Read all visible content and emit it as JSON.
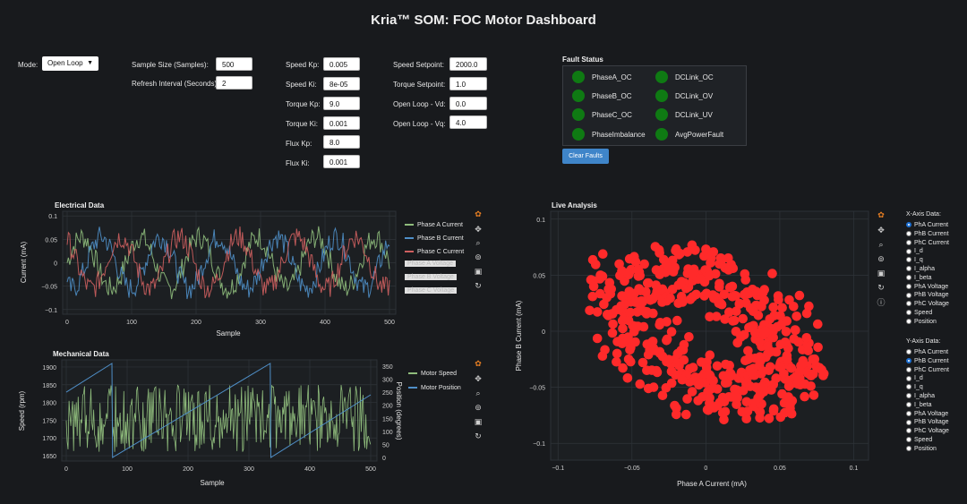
{
  "title": "Kria™ SOM: FOC Motor Dashboard",
  "controls": {
    "mode_label": "Mode:",
    "mode_value": "Open Loop",
    "sample_size_label": "Sample Size (Samples):",
    "sample_size_value": "500",
    "refresh_label": "Refresh Interval (Seconds):",
    "refresh_value": "2",
    "speed_kp_label": "Speed Kp:",
    "speed_kp_value": "0.005",
    "speed_ki_label": "Speed Ki:",
    "speed_ki_value": "8e-05",
    "torque_kp_label": "Torque Kp:",
    "torque_kp_value": "9.0",
    "torque_ki_label": "Torque Ki:",
    "torque_ki_value": "0.001",
    "flux_kp_label": "Flux Kp:",
    "flux_kp_value": "8.0",
    "flux_ki_label": "Flux Ki:",
    "flux_ki_value": "0.001",
    "speed_setpoint_label": "Speed Setpoint:",
    "speed_setpoint_value": "2000.0",
    "torque_setpoint_label": "Torque Setpoint:",
    "torque_setpoint_value": "1.0",
    "vd_label": "Open Loop - Vd:",
    "vd_value": "0.0",
    "vq_label": "Open Loop - Vq:",
    "vq_value": "4.0"
  },
  "fault_status": {
    "title": "Fault Status",
    "left": [
      "PhaseA_OC",
      "PhaseB_OC",
      "PhaseC_OC",
      "PhaseImbalance"
    ],
    "right": [
      "DCLink_OC",
      "DCLink_OV",
      "DCLink_UV",
      "AvgPowerFault"
    ],
    "led_color": "#0f7a13",
    "clear_button": "Clear Faults"
  },
  "colors": {
    "phase_a": "#8fbc7c",
    "phase_b": "#4f8fc8",
    "phase_c": "#cf5f5f",
    "scatter": "#ff2a2a",
    "motor_speed": "#8fbc7c",
    "motor_position": "#4f8fc8"
  },
  "chart_data": [
    {
      "type": "line",
      "title": "Electrical Data",
      "xlabel": "Sample",
      "ylabel": "Current (mA)",
      "xlim": [
        0,
        500
      ],
      "ylim": [
        -0.11,
        0.11
      ],
      "xticks": [
        "0",
        "100",
        "200",
        "300",
        "400",
        "500"
      ],
      "yticks": [
        "0.1",
        "0.05",
        "0",
        "−0.05",
        "−0.1"
      ],
      "series": [
        {
          "name": "Phase A Current",
          "phase_deg": 0,
          "amplitude": 0.055,
          "noise": 0.025,
          "visible": true
        },
        {
          "name": "Phase B Current",
          "phase_deg": 120,
          "amplitude": 0.055,
          "noise": 0.025,
          "visible": true
        },
        {
          "name": "Phase C Current",
          "phase_deg": 240,
          "amplitude": 0.055,
          "noise": 0.025,
          "visible": true
        },
        {
          "name": "Phase A Voltage",
          "visible": false
        },
        {
          "name": "Phase B Voltage",
          "visible": false
        },
        {
          "name": "Phase C Voltage",
          "visible": false
        }
      ],
      "cycles": 5.5
    },
    {
      "type": "line",
      "title": "Mechanical Data",
      "xlabel": "Sample",
      "ylabel": "Speed (rpm)",
      "ylabel_right": "Position (degrees)",
      "xlim": [
        0,
        500
      ],
      "ylim": [
        1635,
        1920
      ],
      "ylim_right": [
        0,
        360
      ],
      "xticks": [
        "0",
        "100",
        "200",
        "300",
        "400",
        "500"
      ],
      "yticks": [
        "1900",
        "1850",
        "1800",
        "1750",
        "1700",
        "1650"
      ],
      "yticks_right": [
        "350",
        "300",
        "250",
        "200",
        "150",
        "100",
        "50",
        "0"
      ],
      "series": [
        {
          "name": "Motor Speed",
          "mean": 1755,
          "spread": 95
        },
        {
          "name": "Motor Position",
          "ramps": [
            [
              0,
              250
            ],
            [
              75,
              360
            ],
            [
              76,
              0
            ],
            [
              335,
              360
            ],
            [
              336,
              0
            ],
            [
              500,
              240
            ]
          ]
        }
      ]
    },
    {
      "type": "scatter",
      "title": "Live Analysis",
      "xlabel": "Phase A Current (mA)",
      "ylabel": "Phase B Current (mA)",
      "xlim": [
        -0.105,
        0.11
      ],
      "ylim": [
        -0.115,
        0.107
      ],
      "xticks": [
        "−0.1",
        "−0.05",
        "0",
        "0.05",
        "0.1"
      ],
      "yticks": [
        "0.1",
        "0.05",
        "0",
        "−0.05",
        "−0.1"
      ],
      "points_count": 500
    }
  ],
  "axis_select": {
    "x_title": "X-Axis Data:",
    "y_title": "Y-Axis Data:",
    "options": [
      "PhA Current",
      "PhB Current",
      "PhC Current",
      "I_d",
      "I_q",
      "I_alpha",
      "I_beta",
      "PhA Voltage",
      "PhB Voltage",
      "PhC Voltage",
      "Speed",
      "Position"
    ],
    "x_selected": "PhA Current",
    "y_selected": "PhB Current"
  },
  "icons": [
    "bokeh-logo-icon",
    "pan-icon",
    "box-zoom-icon",
    "wheel-zoom-icon",
    "save-icon",
    "reset-icon",
    "help-icon"
  ]
}
